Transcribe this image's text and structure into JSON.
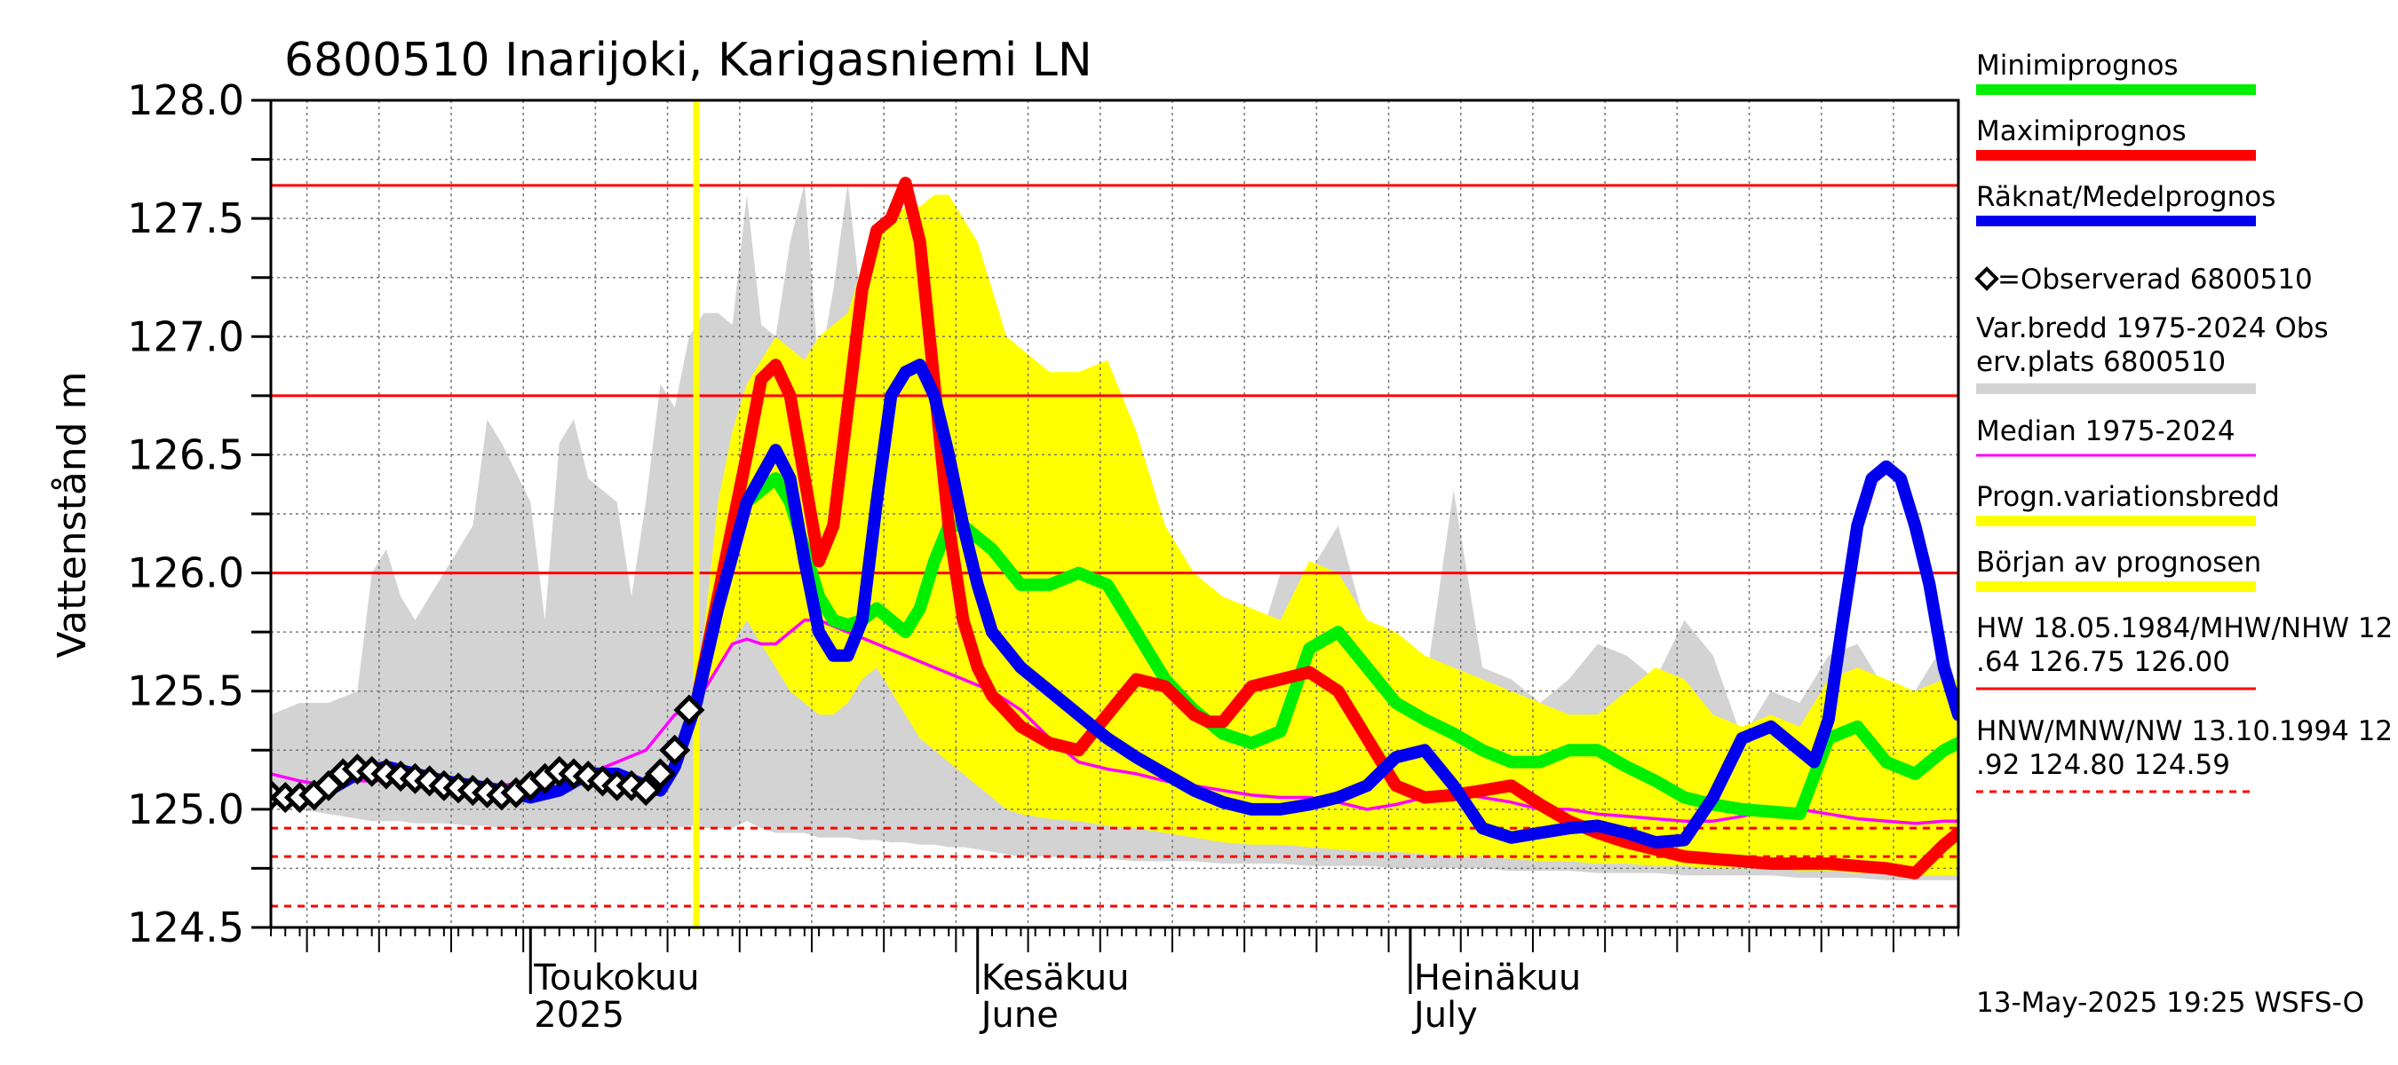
{
  "chart_data": {
    "type": "line",
    "title": "6800510 Inarijoki, Karigasniemi LN",
    "ylabel": "Vattenstånd m",
    "ylim": [
      124.5,
      128.0
    ],
    "yticks": [
      "124.5",
      "125.0",
      "125.5",
      "126.0",
      "126.5",
      "127.0",
      "127.5",
      "128.0"
    ],
    "x_range_days": [
      0,
      117
    ],
    "month_labels": [
      {
        "line1": "Toukokuu",
        "line2": "2025",
        "day": 18
      },
      {
        "line1": "Kesäkuu",
        "line2": "June",
        "day": 49
      },
      {
        "line1": "Heinäkuu",
        "line2": "July",
        "day": 79
      }
    ],
    "forecast_start_day": 29.5,
    "reference_lines": {
      "solid": [
        127.64,
        126.75,
        126.0
      ],
      "dashed": [
        124.92,
        124.8,
        124.59
      ]
    },
    "series": [
      {
        "name": "Minimiprognos",
        "color": "#00ee00",
        "x": [
          29.5,
          31,
          33,
          35,
          36,
          37,
          38,
          39,
          40,
          41,
          42,
          43,
          44,
          45,
          46,
          47,
          48,
          50,
          52,
          54,
          56,
          58,
          60,
          62,
          64,
          66,
          68,
          70,
          72,
          74,
          76,
          78,
          80,
          82,
          84,
          86,
          88,
          90,
          92,
          94,
          96,
          98,
          100,
          102,
          104,
          106,
          108,
          110,
          112,
          114,
          116,
          117
        ],
        "y": [
          125.45,
          125.9,
          126.3,
          126.4,
          126.3,
          126.1,
          125.9,
          125.8,
          125.78,
          125.8,
          125.85,
          125.8,
          125.75,
          125.85,
          126.05,
          126.2,
          126.2,
          126.1,
          125.95,
          125.95,
          126.0,
          125.95,
          125.75,
          125.55,
          125.42,
          125.32,
          125.28,
          125.33,
          125.68,
          125.75,
          125.6,
          125.45,
          125.38,
          125.32,
          125.25,
          125.2,
          125.2,
          125.25,
          125.25,
          125.18,
          125.12,
          125.05,
          125.02,
          125.0,
          124.99,
          124.98,
          125.3,
          125.35,
          125.2,
          125.15,
          125.25,
          125.28
        ]
      },
      {
        "name": "Maximiprognos",
        "color": "#ff0000",
        "x": [
          29.5,
          31,
          33,
          34,
          35,
          36,
          37,
          38,
          39,
          40,
          41,
          42,
          43,
          44,
          45,
          46,
          47,
          48,
          49,
          50,
          52,
          54,
          56,
          58,
          60,
          62,
          64,
          65,
          66,
          68,
          70,
          72,
          74,
          76,
          78,
          80,
          82,
          84,
          86,
          88,
          90,
          92,
          94,
          96,
          98,
          100,
          102,
          104,
          106,
          108,
          110,
          112,
          114,
          116,
          117
        ],
        "y": [
          125.45,
          125.9,
          126.5,
          126.82,
          126.88,
          126.75,
          126.4,
          126.05,
          126.2,
          126.7,
          127.2,
          127.45,
          127.5,
          127.65,
          127.4,
          126.8,
          126.2,
          125.8,
          125.6,
          125.48,
          125.35,
          125.28,
          125.25,
          125.4,
          125.55,
          125.52,
          125.4,
          125.37,
          125.37,
          125.52,
          125.55,
          125.58,
          125.5,
          125.3,
          125.1,
          125.05,
          125.06,
          125.08,
          125.1,
          125.02,
          124.95,
          124.9,
          124.86,
          124.83,
          124.8,
          124.79,
          124.78,
          124.77,
          124.77,
          124.77,
          124.76,
          124.75,
          124.73,
          124.85,
          124.9
        ]
      },
      {
        "name": "Räknat/Medelprognos",
        "color": "#0000ee",
        "x": [
          0,
          2,
          4,
          6,
          8,
          10,
          12,
          14,
          16,
          18,
          20,
          22,
          24,
          26,
          27,
          28,
          29.5,
          31,
          33,
          35,
          36,
          37,
          38,
          39,
          40,
          41,
          42,
          43,
          44,
          45,
          46,
          47,
          48,
          49,
          50,
          52,
          54,
          56,
          58,
          60,
          62,
          64,
          66,
          68,
          70,
          72,
          74,
          76,
          78,
          80,
          82,
          84,
          86,
          88,
          90,
          92,
          94,
          96,
          98,
          100,
          102,
          104,
          105,
          106,
          107,
          108,
          109,
          110,
          111,
          112,
          113,
          114,
          115,
          116,
          117
        ],
        "y": [
          125.05,
          125.05,
          125.08,
          125.15,
          125.18,
          125.15,
          125.12,
          125.1,
          125.08,
          125.05,
          125.08,
          125.15,
          125.15,
          125.1,
          125.08,
          125.18,
          125.45,
          125.85,
          126.3,
          126.52,
          126.4,
          126.05,
          125.75,
          125.65,
          125.65,
          125.8,
          126.3,
          126.75,
          126.85,
          126.88,
          126.75,
          126.5,
          126.2,
          125.95,
          125.75,
          125.6,
          125.5,
          125.4,
          125.3,
          125.22,
          125.15,
          125.08,
          125.03,
          125.0,
          125.0,
          125.02,
          125.05,
          125.1,
          125.22,
          125.25,
          125.1,
          124.92,
          124.88,
          124.9,
          124.92,
          124.93,
          124.9,
          124.86,
          124.87,
          125.05,
          125.3,
          125.35,
          125.3,
          125.25,
          125.2,
          125.38,
          125.8,
          126.2,
          126.4,
          126.45,
          126.4,
          126.2,
          125.95,
          125.6,
          125.4
        ]
      },
      {
        "name": "Median 1975-2024",
        "color": "#ff00ff",
        "x": [
          0,
          2,
          4,
          6,
          8,
          10,
          12,
          14,
          16,
          18,
          20,
          22,
          24,
          26,
          28,
          29.5,
          31,
          32,
          33,
          34,
          35,
          36,
          37,
          38,
          40,
          42,
          44,
          46,
          48,
          50,
          52,
          54,
          56,
          58,
          60,
          62,
          64,
          66,
          68,
          70,
          72,
          74,
          76,
          78,
          80,
          82,
          84,
          86,
          88,
          90,
          92,
          94,
          96,
          98,
          100,
          102,
          104,
          106,
          108,
          110,
          112,
          114,
          116,
          117
        ],
        "y": [
          125.15,
          125.12,
          125.1,
          125.12,
          125.12,
          125.1,
          125.1,
          125.1,
          125.1,
          125.12,
          125.12,
          125.15,
          125.2,
          125.25,
          125.4,
          125.45,
          125.6,
          125.7,
          125.72,
          125.7,
          125.7,
          125.75,
          125.8,
          125.8,
          125.75,
          125.7,
          125.65,
          125.6,
          125.55,
          125.5,
          125.42,
          125.3,
          125.2,
          125.17,
          125.15,
          125.12,
          125.1,
          125.08,
          125.06,
          125.05,
          125.05,
          125.03,
          125.0,
          125.02,
          125.05,
          125.07,
          125.05,
          125.03,
          125.0,
          125.0,
          124.98,
          124.97,
          124.96,
          124.95,
          124.95,
          124.97,
          125.0,
          125.0,
          124.98,
          124.96,
          124.95,
          124.94,
          124.95,
          124.95
        ]
      },
      {
        "name": "=Observerad 6800510",
        "color": "#000000",
        "marker": "diamond",
        "x": [
          0,
          1,
          2,
          3,
          4,
          5,
          6,
          7,
          8,
          9,
          10,
          11,
          12,
          13,
          14,
          15,
          16,
          17,
          18,
          19,
          20,
          21,
          22,
          23,
          24,
          25,
          26,
          27,
          28,
          29
        ],
        "y": [
          125.06,
          125.05,
          125.05,
          125.06,
          125.1,
          125.15,
          125.17,
          125.16,
          125.15,
          125.14,
          125.13,
          125.12,
          125.1,
          125.09,
          125.08,
          125.07,
          125.06,
          125.07,
          125.1,
          125.13,
          125.16,
          125.15,
          125.14,
          125.12,
          125.1,
          125.1,
          125.08,
          125.15,
          125.25,
          125.42
        ]
      }
    ],
    "bands": [
      {
        "name": "Var.bredd 1975-2024   Obs erv.plats 6800510",
        "color": "#d3d3d3",
        "x": [
          0,
          2,
          4,
          6,
          7,
          8,
          9,
          10,
          12,
          14,
          15,
          16,
          18,
          19,
          20,
          21,
          22,
          24,
          25,
          26,
          27,
          28,
          29,
          30,
          31,
          32,
          33,
          34,
          35,
          36,
          37,
          38,
          39,
          40,
          41,
          42,
          43,
          44,
          45,
          46,
          47,
          48,
          49,
          50,
          52,
          54,
          56,
          58,
          60,
          62,
          64,
          66,
          68,
          70,
          72,
          74,
          76,
          78,
          80,
          82,
          84,
          86,
          88,
          90,
          92,
          94,
          96,
          98,
          100,
          102,
          104,
          106,
          108,
          110,
          112,
          114,
          116,
          117
        ],
        "upper": [
          125.4,
          125.45,
          125.45,
          125.5,
          126.0,
          126.1,
          125.9,
          125.8,
          126.0,
          126.2,
          126.65,
          126.55,
          126.3,
          125.8,
          126.55,
          126.65,
          126.4,
          126.3,
          125.9,
          126.3,
          126.8,
          126.7,
          127.0,
          127.1,
          127.1,
          127.05,
          127.6,
          127.05,
          127.0,
          127.4,
          127.65,
          126.85,
          127.2,
          127.65,
          127.1,
          127.4,
          127.45,
          127.5,
          127.3,
          127.3,
          127.4,
          127.1,
          127.1,
          126.9,
          126.5,
          126.2,
          126.15,
          126.0,
          126.3,
          125.95,
          125.9,
          125.8,
          125.6,
          126.0,
          126.0,
          126.2,
          125.75,
          125.55,
          125.5,
          126.35,
          125.6,
          125.55,
          125.45,
          125.55,
          125.7,
          125.65,
          125.55,
          125.8,
          125.65,
          125.3,
          125.5,
          125.45,
          125.65,
          125.7,
          125.5,
          125.5,
          125.7,
          125.5
        ],
        "lower": [
          125.05,
          125.0,
          124.98,
          124.96,
          124.95,
          124.95,
          124.95,
          124.94,
          124.94,
          124.93,
          124.93,
          124.92,
          124.92,
          124.92,
          124.92,
          124.92,
          124.92,
          124.92,
          124.92,
          124.92,
          124.92,
          124.92,
          124.93,
          124.92,
          124.92,
          124.92,
          124.95,
          124.92,
          124.9,
          124.9,
          124.9,
          124.88,
          124.88,
          124.88,
          124.87,
          124.87,
          124.86,
          124.86,
          124.85,
          124.85,
          124.84,
          124.84,
          124.83,
          124.82,
          124.8,
          124.8,
          124.79,
          124.79,
          124.78,
          124.78,
          124.78,
          124.77,
          124.77,
          124.77,
          124.76,
          124.76,
          124.76,
          124.75,
          124.75,
          124.75,
          124.75,
          124.74,
          124.74,
          124.74,
          124.73,
          124.73,
          124.73,
          124.72,
          124.72,
          124.72,
          124.72,
          124.71,
          124.71,
          124.71,
          124.7,
          124.7,
          124.7,
          124.7
        ]
      },
      {
        "name": "Progn.variationsbredd",
        "color": "#ffff00",
        "x": [
          29.5,
          31,
          32,
          33,
          34,
          35,
          36,
          37,
          38,
          39,
          40,
          41,
          42,
          43,
          44,
          45,
          46,
          47,
          48,
          49,
          50,
          51,
          52,
          54,
          56,
          58,
          60,
          62,
          64,
          66,
          68,
          70,
          72,
          74,
          76,
          78,
          80,
          82,
          84,
          86,
          88,
          90,
          92,
          94,
          96,
          98,
          100,
          102,
          104,
          106,
          108,
          110,
          112,
          114,
          116,
          117
        ],
        "upper": [
          125.45,
          126.3,
          126.6,
          126.8,
          126.9,
          127.0,
          126.95,
          126.9,
          127.0,
          127.05,
          127.1,
          127.3,
          127.45,
          127.5,
          127.55,
          127.55,
          127.6,
          127.6,
          127.5,
          127.4,
          127.2,
          127.0,
          126.95,
          126.85,
          126.85,
          126.9,
          126.6,
          126.2,
          126.0,
          125.9,
          125.85,
          125.8,
          126.05,
          126.0,
          125.8,
          125.75,
          125.65,
          125.6,
          125.55,
          125.5,
          125.45,
          125.4,
          125.4,
          125.5,
          125.6,
          125.55,
          125.4,
          125.35,
          125.4,
          125.35,
          125.55,
          125.6,
          125.55,
          125.5,
          125.55,
          125.55
        ],
        "lower": [
          125.45,
          125.6,
          125.7,
          125.8,
          125.7,
          125.6,
          125.5,
          125.45,
          125.4,
          125.4,
          125.45,
          125.55,
          125.6,
          125.5,
          125.4,
          125.3,
          125.25,
          125.2,
          125.15,
          125.1,
          125.05,
          125.0,
          124.98,
          124.96,
          124.95,
          124.93,
          124.92,
          124.9,
          124.88,
          124.86,
          124.85,
          124.85,
          124.84,
          124.83,
          124.82,
          124.82,
          124.81,
          124.8,
          124.8,
          124.79,
          124.78,
          124.78,
          124.77,
          124.77,
          124.76,
          124.76,
          124.75,
          124.75,
          124.75,
          124.74,
          124.74,
          124.73,
          124.73,
          124.72,
          124.72,
          124.72
        ]
      }
    ],
    "legend": {
      "placement": "right",
      "items": [
        {
          "label": "Minimiprognos",
          "color": "#00ee00"
        },
        {
          "label": "Maximiprognos",
          "color": "#ff0000"
        },
        {
          "label": "Räknat/Medelprognos",
          "color": "#0000ee"
        },
        {
          "label": "=Observerad 6800510",
          "color": "#000000",
          "marker": true
        },
        {
          "label": "Var.bredd 1975-2024   Obs",
          "label2": "erv.plats 6800510",
          "color": "#d3d3d3"
        },
        {
          "label": "Median 1975-2024",
          "color": "#ff00ff",
          "thin": true
        },
        {
          "label": "Progn.variationsbredd",
          "color": "#ffff00"
        },
        {
          "label": "Början av prognosen",
          "color": "#ffff00"
        },
        {
          "label": "HW 18.05.1984/MHW/NHW 12",
          "label2": ".64 126.75 126.00",
          "color": "#ff0000",
          "thin": true
        },
        {
          "label": "HNW/MNW/NW 13.10.1994 12",
          "label2": ".92 124.80 124.59",
          "color": "#ff0000",
          "thin": true,
          "dashed": true
        }
      ]
    },
    "footer": "13-May-2025 19:25 WSFS-O",
    "grid": true
  }
}
